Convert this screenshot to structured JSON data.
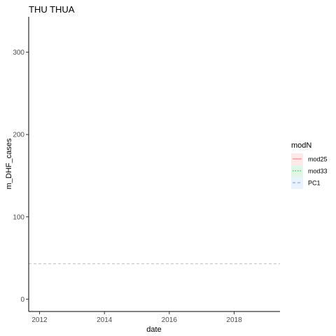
{
  "chart_data": {
    "type": "line",
    "title": "THU THUA",
    "xlabel": "date",
    "ylabel": "m_DHF_cases",
    "xlim": [
      "2011-09-01",
      "2019-06-01"
    ],
    "ylim": [
      -15,
      343
    ],
    "x_ticks": [
      "2012",
      "2014",
      "2016",
      "2018"
    ],
    "x_tick_dates": [
      "2012-01-01",
      "2014-01-01",
      "2016-01-01",
      "2018-01-01"
    ],
    "y_ticks": [
      0,
      100,
      200,
      300
    ],
    "grid": false,
    "legend": {
      "title": "modN",
      "position": "right",
      "entries": [
        {
          "label": "mod25",
          "color": "#f8766d",
          "dash": "solid",
          "fill": "#fde9e8"
        },
        {
          "label": "mod33",
          "color": "#00ba38",
          "dash": "dotted",
          "fill": "#e2f6e8"
        },
        {
          "label": "PC1",
          "color": "#619cff",
          "dash": "dashed",
          "fill": "#eaf1ff"
        }
      ]
    },
    "reference_lines": [
      {
        "y": 43,
        "color": "#bdbdbd",
        "dash": "dashed"
      }
    ],
    "series": []
  }
}
